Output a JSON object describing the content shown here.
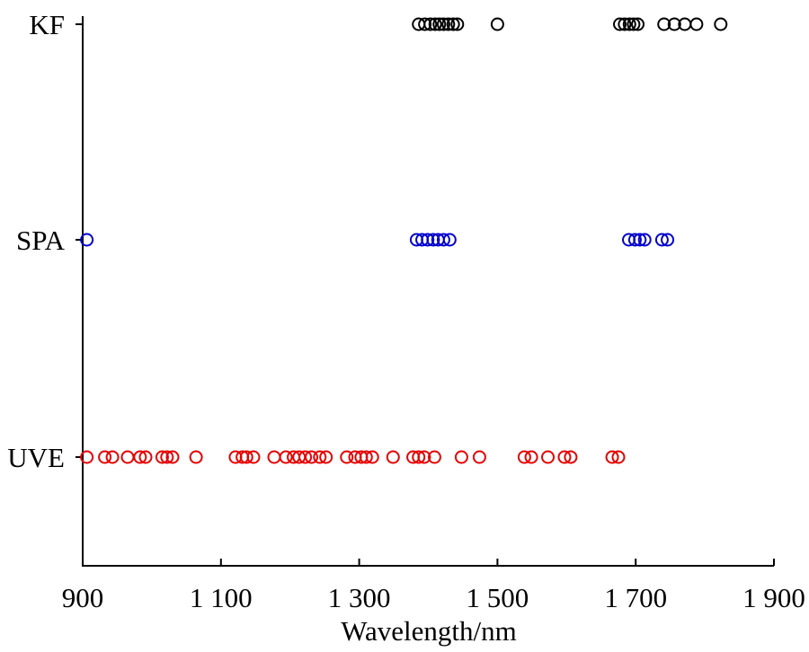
{
  "chart_data": {
    "type": "scatter",
    "title": "",
    "xlabel": "Wavelength/nm",
    "ylabel": "",
    "xlim": [
      900,
      1900
    ],
    "x_ticks": [
      900,
      1100,
      1300,
      1500,
      1700,
      1900
    ],
    "x_tick_labels": [
      "900",
      "1 100",
      "1 300",
      "1 500",
      "1 700",
      "1 900"
    ],
    "categories": [
      "KF",
      "SPA",
      "UVE"
    ],
    "grid": false,
    "legend": "none",
    "series": [
      {
        "category": "KF",
        "color": "#000000",
        "marker": "open-circle",
        "x": [
          1386,
          1395,
          1403,
          1410,
          1416,
          1422,
          1429,
          1436,
          1442,
          1500,
          1677,
          1684,
          1691,
          1697,
          1703,
          1741,
          1756,
          1771,
          1788,
          1823
        ]
      },
      {
        "category": "SPA",
        "color": "#0000cc",
        "marker": "open-circle",
        "x": [
          906,
          1383,
          1391,
          1399,
          1407,
          1414,
          1422,
          1431,
          1690,
          1699,
          1706,
          1713,
          1738,
          1746
        ]
      },
      {
        "category": "UVE",
        "color": "#e60000",
        "marker": "open-circle",
        "x": [
          906,
          932,
          943,
          965,
          983,
          991,
          1015,
          1022,
          1030,
          1064,
          1121,
          1131,
          1137,
          1147,
          1177,
          1194,
          1205,
          1213,
          1222,
          1231,
          1243,
          1252,
          1282,
          1294,
          1303,
          1310,
          1319,
          1349,
          1378,
          1386,
          1394,
          1409,
          1448,
          1474,
          1539,
          1549,
          1573,
          1597,
          1606,
          1666,
          1675
        ]
      }
    ]
  }
}
